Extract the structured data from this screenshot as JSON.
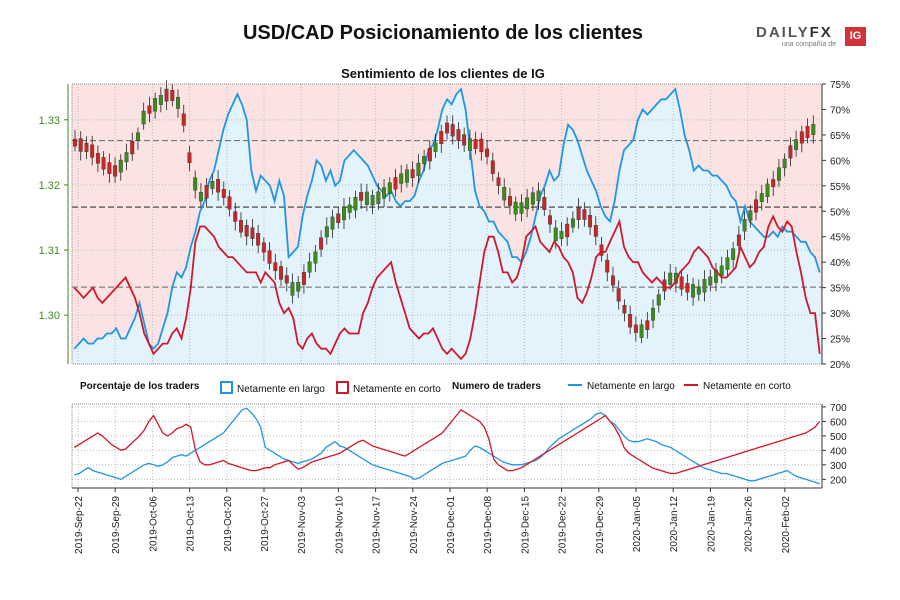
{
  "title": "USD/CAD Posicionamiento de los clientes",
  "logo": {
    "brand_left": "DAILY",
    "brand_right": "FX",
    "tagline": "una compañía de",
    "badge": "IG"
  },
  "subtitle": "Sentimiento de los clientes de IG",
  "legend": {
    "pct_title": "Porcentaje de los traders",
    "pct_long": "Netamente en largo",
    "pct_short": "Netamente en corto",
    "num_title": "Numero de traders",
    "num_long": "Netamente en largo",
    "num_short": "Netamente en corto"
  },
  "colors": {
    "long": "#2196e0",
    "short": "#d0172b",
    "bull": "#3d8b1f",
    "bear": "#c62828",
    "long_fill": "#e3f3fb",
    "short_fill": "#fbe3e3"
  },
  "chart_data": [
    {
      "type": "candlestick",
      "title": "Sentimiento de los clientes de IG",
      "ylim_price": [
        1.2925,
        1.3355
      ],
      "yticks_price": [
        1.3,
        1.31,
        1.32,
        1.33
      ],
      "ylim_pct": [
        20,
        75
      ],
      "yticks_pct": [
        "20%",
        "25%",
        "30%",
        "35%",
        "40%",
        "45%",
        "50%",
        "55%",
        "60%",
        "65%",
        "70%",
        "75%"
      ],
      "price_reference_lines": [
        1.3166,
        1.3043,
        1.3268
      ],
      "x_ticks": [
        "2019-Sep-22",
        "2019-Sep-29",
        "2019-Oct-06",
        "2019-Oct-13",
        "2019-Oct-20",
        "2019-Oct-27",
        "2019-Nov-03",
        "2019-Nov-10",
        "2019-Nov-17",
        "2019-Nov-24",
        "2019-Dec-01",
        "2019-Dec-08",
        "2019-Dec-15",
        "2019-Dec-22",
        "2019-Dec-29",
        "2020-Jan-05",
        "2020-Jan-12",
        "2020-Jan-19",
        "2020-Jan-26",
        "2020-Feb-02"
      ],
      "series": [
        {
          "name": "Netamente en largo",
          "type": "area",
          "values": [
            23,
            24,
            25,
            24,
            24,
            25,
            25,
            26,
            26,
            27,
            25,
            25,
            27,
            29,
            32,
            28,
            24,
            23,
            24,
            27,
            30,
            35,
            38,
            37,
            39,
            43,
            46,
            50,
            52,
            56,
            58,
            62,
            66,
            69,
            71,
            73,
            71,
            68,
            58,
            54,
            57,
            56,
            55,
            52,
            56,
            53,
            41,
            42,
            43,
            49,
            53,
            56,
            60,
            59,
            56,
            58,
            55,
            56,
            60,
            61,
            62,
            61,
            60,
            59,
            57,
            55,
            54,
            53,
            54,
            52,
            51,
            52,
            52,
            53,
            56,
            58,
            62,
            63,
            66,
            70,
            72,
            71,
            73,
            74,
            70,
            62,
            54,
            51,
            50,
            48,
            48,
            46,
            45,
            44,
            41,
            41,
            40,
            42,
            45,
            49,
            53,
            55,
            58,
            56,
            57,
            63,
            67,
            66,
            64,
            61,
            58,
            56,
            54,
            51,
            49,
            48,
            52,
            58,
            62,
            63,
            64,
            68,
            70,
            69,
            70,
            71,
            72,
            72,
            73,
            74,
            70,
            65,
            62,
            58,
            59,
            58,
            58,
            57,
            57,
            56,
            55,
            53,
            52,
            48,
            51,
            48,
            47,
            46,
            45,
            45,
            46,
            45,
            47,
            46,
            46,
            45,
            44,
            44,
            42,
            41,
            38
          ]
        },
        {
          "name": "Netamente en corto",
          "type": "line",
          "values": [
            35,
            34,
            33,
            34,
            35,
            33,
            32,
            33,
            34,
            35,
            36,
            37,
            35,
            33,
            30,
            26,
            24,
            22,
            23,
            24,
            24,
            26,
            27,
            25,
            29,
            35,
            44,
            47,
            47,
            46,
            45,
            43,
            42,
            41,
            41,
            40,
            39,
            38,
            38,
            38,
            36,
            38,
            37,
            36,
            32,
            30,
            31,
            29,
            24,
            23,
            25,
            26,
            24,
            23,
            23,
            22,
            24,
            26,
            27,
            26,
            26,
            26,
            30,
            32,
            35,
            37,
            38,
            39,
            40,
            36,
            33,
            30,
            27,
            26,
            25,
            26,
            26,
            27,
            25,
            23,
            22,
            23,
            22,
            21,
            22,
            25,
            30,
            36,
            42,
            45,
            45,
            42,
            38,
            38,
            36,
            37,
            40,
            45,
            46,
            47,
            44,
            43,
            42,
            44,
            43,
            41,
            40,
            38,
            33,
            32,
            34,
            37,
            41,
            42,
            42,
            44,
            46,
            48,
            43,
            41,
            40,
            40,
            38,
            37,
            36,
            37,
            36,
            35,
            35,
            36,
            38,
            39,
            40,
            42,
            43,
            42,
            41,
            39,
            38,
            37,
            37,
            38,
            39,
            43,
            41,
            39,
            40,
            42,
            43,
            47,
            49,
            47,
            46,
            48,
            47,
            42,
            38,
            33,
            30,
            30,
            22
          ]
        }
      ],
      "candles_count": 160
    },
    {
      "type": "line",
      "ylim": [
        140,
        720
      ],
      "yticks": [
        200,
        300,
        400,
        500,
        600,
        700
      ],
      "series": [
        {
          "name": "Netamente en largo",
          "values": [
            230,
            240,
            260,
            280,
            260,
            250,
            240,
            230,
            220,
            210,
            200,
            220,
            240,
            260,
            280,
            300,
            310,
            300,
            290,
            300,
            320,
            350,
            360,
            370,
            360,
            380,
            400,
            420,
            440,
            460,
            480,
            500,
            520,
            560,
            600,
            640,
            680,
            690,
            660,
            620,
            560,
            420,
            400,
            380,
            360,
            340,
            330,
            320,
            310,
            320,
            330,
            340,
            360,
            380,
            420,
            440,
            460,
            430,
            420,
            400,
            380,
            360,
            340,
            320,
            300,
            290,
            280,
            270,
            260,
            250,
            240,
            230,
            220,
            200,
            210,
            230,
            250,
            270,
            290,
            310,
            320,
            330,
            340,
            350,
            360,
            400,
            430,
            420,
            400,
            380,
            360,
            340,
            320,
            310,
            300,
            300,
            300,
            310,
            320,
            330,
            350,
            380,
            420,
            450,
            480,
            500,
            520,
            540,
            560,
            580,
            600,
            620,
            650,
            660,
            640,
            600,
            580,
            540,
            500,
            470,
            460,
            460,
            470,
            480,
            470,
            460,
            440,
            430,
            420,
            400,
            380,
            360,
            340,
            320,
            300,
            280,
            270,
            260,
            250,
            240,
            240,
            230,
            220,
            210,
            200,
            190,
            190,
            200,
            210,
            220,
            230,
            240,
            250,
            260,
            240,
            220,
            210,
            200,
            190,
            180,
            170
          ]
        },
        {
          "name": "Netamente en corto",
          "values": [
            420,
            440,
            460,
            480,
            500,
            520,
            500,
            470,
            440,
            420,
            400,
            410,
            440,
            470,
            500,
            540,
            600,
            640,
            580,
            520,
            500,
            520,
            550,
            560,
            580,
            560,
            400,
            320,
            300,
            300,
            310,
            320,
            330,
            310,
            300,
            290,
            280,
            270,
            260,
            260,
            270,
            280,
            280,
            300,
            310,
            320,
            330,
            300,
            270,
            280,
            300,
            320,
            330,
            340,
            350,
            360,
            370,
            380,
            400,
            420,
            440,
            460,
            470,
            450,
            430,
            420,
            410,
            400,
            390,
            380,
            370,
            360,
            380,
            400,
            420,
            440,
            460,
            480,
            500,
            520,
            560,
            600,
            640,
            680,
            660,
            640,
            620,
            600,
            560,
            480,
            340,
            300,
            280,
            260,
            260,
            270,
            280,
            300,
            320,
            340,
            360,
            380,
            400,
            420,
            440,
            460,
            480,
            500,
            520,
            540,
            560,
            580,
            600,
            620,
            640,
            600,
            560,
            500,
            420,
            380,
            360,
            340,
            320,
            300,
            280,
            270,
            260,
            250,
            240,
            240,
            250,
            260,
            270,
            280,
            290,
            300,
            310,
            320,
            330,
            340,
            350,
            360,
            370,
            380,
            390,
            400,
            410,
            420,
            430,
            440,
            450,
            460,
            470,
            480,
            490,
            500,
            510,
            520,
            540,
            560,
            600
          ]
        }
      ]
    }
  ]
}
